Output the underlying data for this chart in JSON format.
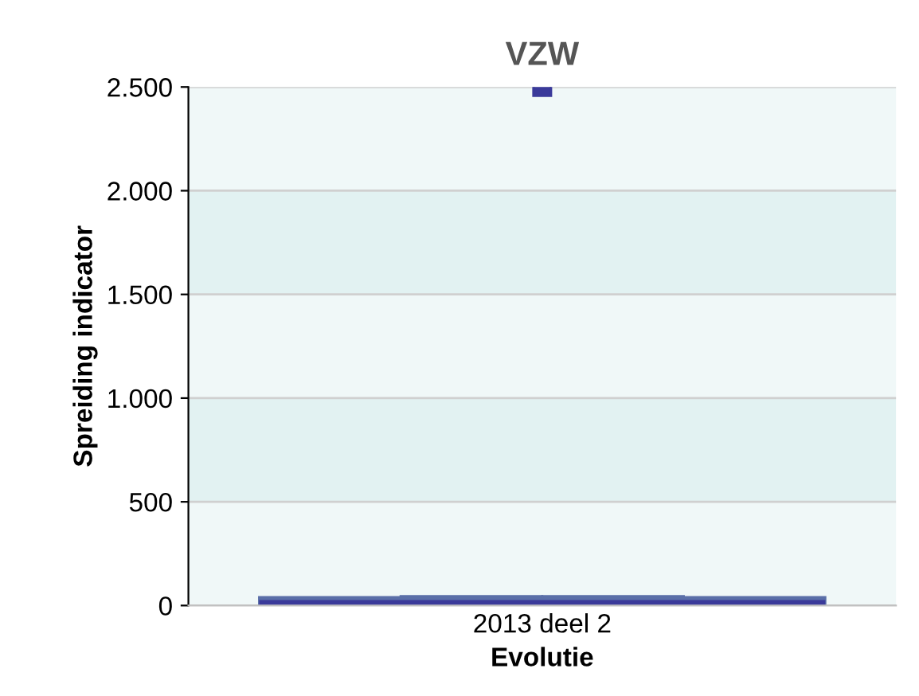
{
  "chart_data": {
    "type": "box",
    "title": "VZW",
    "xlabel": "Evolutie",
    "ylabel": "Spreiding indicator",
    "categories": [
      "2013 deel 2"
    ],
    "boxes": [
      {
        "low": 2,
        "q1": 5,
        "median": 10,
        "q3": 40,
        "high": 45,
        "outliers": [
          2500
        ]
      }
    ],
    "color": "#5a6fa8",
    "ylim": [
      0,
      2500
    ],
    "yticks": [
      {
        "value": 0,
        "label": "0"
      },
      {
        "value": 500,
        "label": "500"
      },
      {
        "value": 1000,
        "label": "1.000"
      },
      {
        "value": 1500,
        "label": "1.500"
      },
      {
        "value": 2000,
        "label": "2.000"
      },
      {
        "value": 2500,
        "label": "2.500"
      }
    ],
    "bands": [
      {
        "axis": "y",
        "from": 500,
        "to": 1000,
        "color": "#e2f2f2"
      },
      {
        "axis": "y",
        "from": 1500,
        "to": 2000,
        "color": "#e2f2f2"
      }
    ],
    "grid": "y",
    "legend": false
  }
}
